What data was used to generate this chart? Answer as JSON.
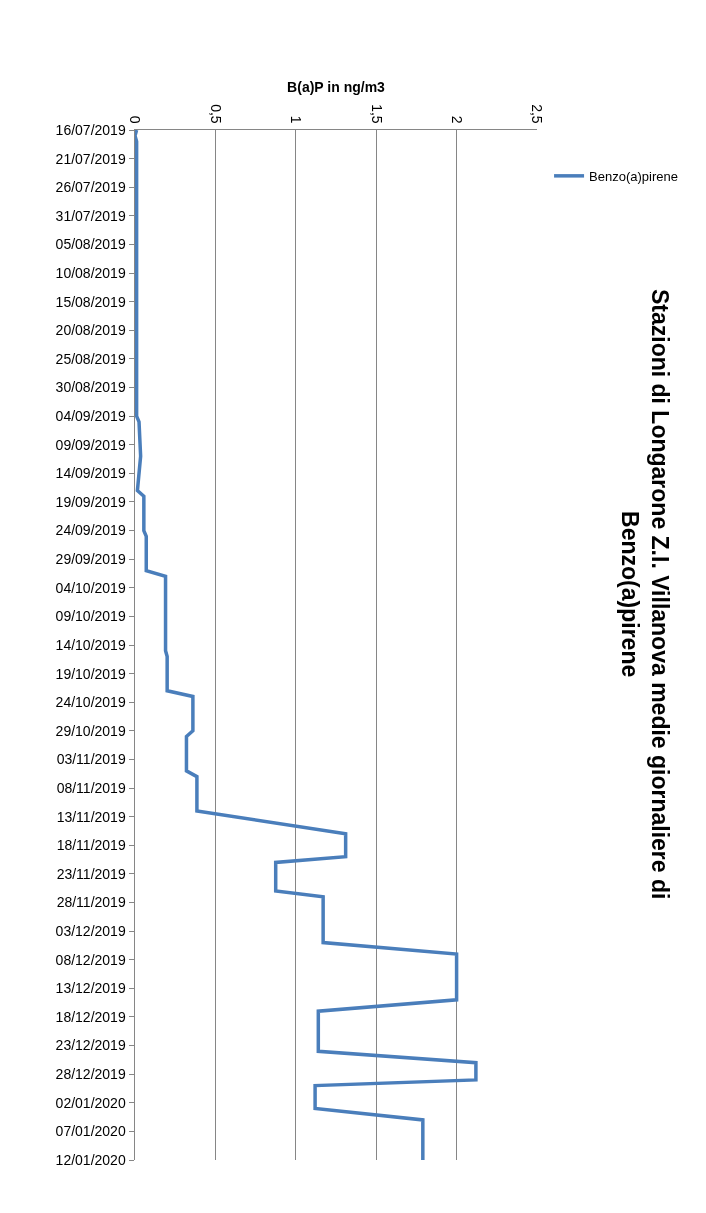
{
  "chart_data": {
    "type": "line",
    "title": "Stazioni di Longarone Z.I. Villanova medie giornaliere di Benzo(a)pirene",
    "ylabel": "B(a)P in ng/m3",
    "x": [
      "2019-07-16",
      "2019-07-17",
      "2019-07-18",
      "2019-09-04",
      "2019-09-05",
      "2019-09-11",
      "2019-09-17",
      "2019-09-18",
      "2019-09-24",
      "2019-09-25",
      "2019-10-01",
      "2019-10-02",
      "2019-10-15",
      "2019-10-16",
      "2019-10-22",
      "2019-10-23",
      "2019-10-29",
      "2019-10-30",
      "2019-11-05",
      "2019-11-06",
      "2019-11-12",
      "2019-11-16",
      "2019-11-20",
      "2019-11-21",
      "2019-11-26",
      "2019-11-27",
      "2019-12-05",
      "2019-12-07",
      "2019-12-15",
      "2019-12-17",
      "2019-12-24",
      "2019-12-26",
      "2019-12-29",
      "2019-12-30",
      "2020-01-03",
      "2020-01-05",
      "2020-01-12"
    ],
    "series": [
      {
        "name": "Benzo(a)pirene",
        "color": "#4a7ebb",
        "values": [
          0.01,
          0.0,
          0.01,
          0.01,
          0.025,
          0.035,
          0.015,
          0.055,
          0.055,
          0.07,
          0.07,
          0.19,
          0.19,
          0.2,
          0.2,
          0.36,
          0.36,
          0.32,
          0.32,
          0.385,
          0.385,
          1.31,
          1.31,
          0.875,
          0.875,
          1.17,
          1.17,
          2.0,
          2.0,
          1.14,
          1.14,
          2.12,
          2.12,
          1.12,
          1.12,
          1.79,
          1.79
        ]
      }
    ],
    "orientation": "horizontal",
    "ylim": [
      "2020-01-12",
      "2019-07-16"
    ],
    "yticks": [
      {
        "value": "2019-07-16",
        "label": "16/07/2019"
      },
      {
        "value": "2019-07-21",
        "label": "21/07/2019"
      },
      {
        "value": "2019-07-26",
        "label": "26/07/2019"
      },
      {
        "value": "2019-07-31",
        "label": "31/07/2019"
      },
      {
        "value": "2019-08-05",
        "label": "05/08/2019"
      },
      {
        "value": "2019-08-10",
        "label": "10/08/2019"
      },
      {
        "value": "2019-08-15",
        "label": "15/08/2019"
      },
      {
        "value": "2019-08-20",
        "label": "20/08/2019"
      },
      {
        "value": "2019-08-25",
        "label": "25/08/2019"
      },
      {
        "value": "2019-08-30",
        "label": "30/08/2019"
      },
      {
        "value": "2019-09-04",
        "label": "04/09/2019"
      },
      {
        "value": "2019-09-09",
        "label": "09/09/2019"
      },
      {
        "value": "2019-09-14",
        "label": "14/09/2019"
      },
      {
        "value": "2019-09-19",
        "label": "19/09/2019"
      },
      {
        "value": "2019-09-24",
        "label": "24/09/2019"
      },
      {
        "value": "2019-09-29",
        "label": "29/09/2019"
      },
      {
        "value": "2019-10-04",
        "label": "04/10/2019"
      },
      {
        "value": "2019-10-09",
        "label": "09/10/2019"
      },
      {
        "value": "2019-10-14",
        "label": "14/10/2019"
      },
      {
        "value": "2019-10-19",
        "label": "19/10/2019"
      },
      {
        "value": "2019-10-24",
        "label": "24/10/2019"
      },
      {
        "value": "2019-10-29",
        "label": "29/10/2019"
      },
      {
        "value": "2019-11-03",
        "label": "03/11/2019"
      },
      {
        "value": "2019-11-08",
        "label": "08/11/2019"
      },
      {
        "value": "2019-11-13",
        "label": "13/11/2019"
      },
      {
        "value": "2019-11-18",
        "label": "18/11/2019"
      },
      {
        "value": "2019-11-23",
        "label": "23/11/2019"
      },
      {
        "value": "2019-11-28",
        "label": "28/11/2019"
      },
      {
        "value": "2019-12-03",
        "label": "03/12/2019"
      },
      {
        "value": "2019-12-08",
        "label": "08/12/2019"
      },
      {
        "value": "2019-12-13",
        "label": "13/12/2019"
      },
      {
        "value": "2019-12-18",
        "label": "18/12/2019"
      },
      {
        "value": "2019-12-23",
        "label": "23/12/2019"
      },
      {
        "value": "2019-12-28",
        "label": "28/12/2019"
      },
      {
        "value": "2020-01-02",
        "label": "02/01/2020"
      },
      {
        "value": "2020-01-07",
        "label": "07/01/2020"
      },
      {
        "value": "2020-01-12",
        "label": "12/01/2020"
      }
    ],
    "xlim": [
      0,
      2.5
    ],
    "xticks": [
      0,
      {
        "value": 0.5,
        "label": "0,5"
      },
      1,
      {
        "value": 1.5,
        "label": "1,5"
      },
      2,
      {
        "value": 2.5,
        "label": "2,5"
      }
    ],
    "grid": "x",
    "legend": "top right",
    "marker": "none",
    "line_style": "solid"
  }
}
